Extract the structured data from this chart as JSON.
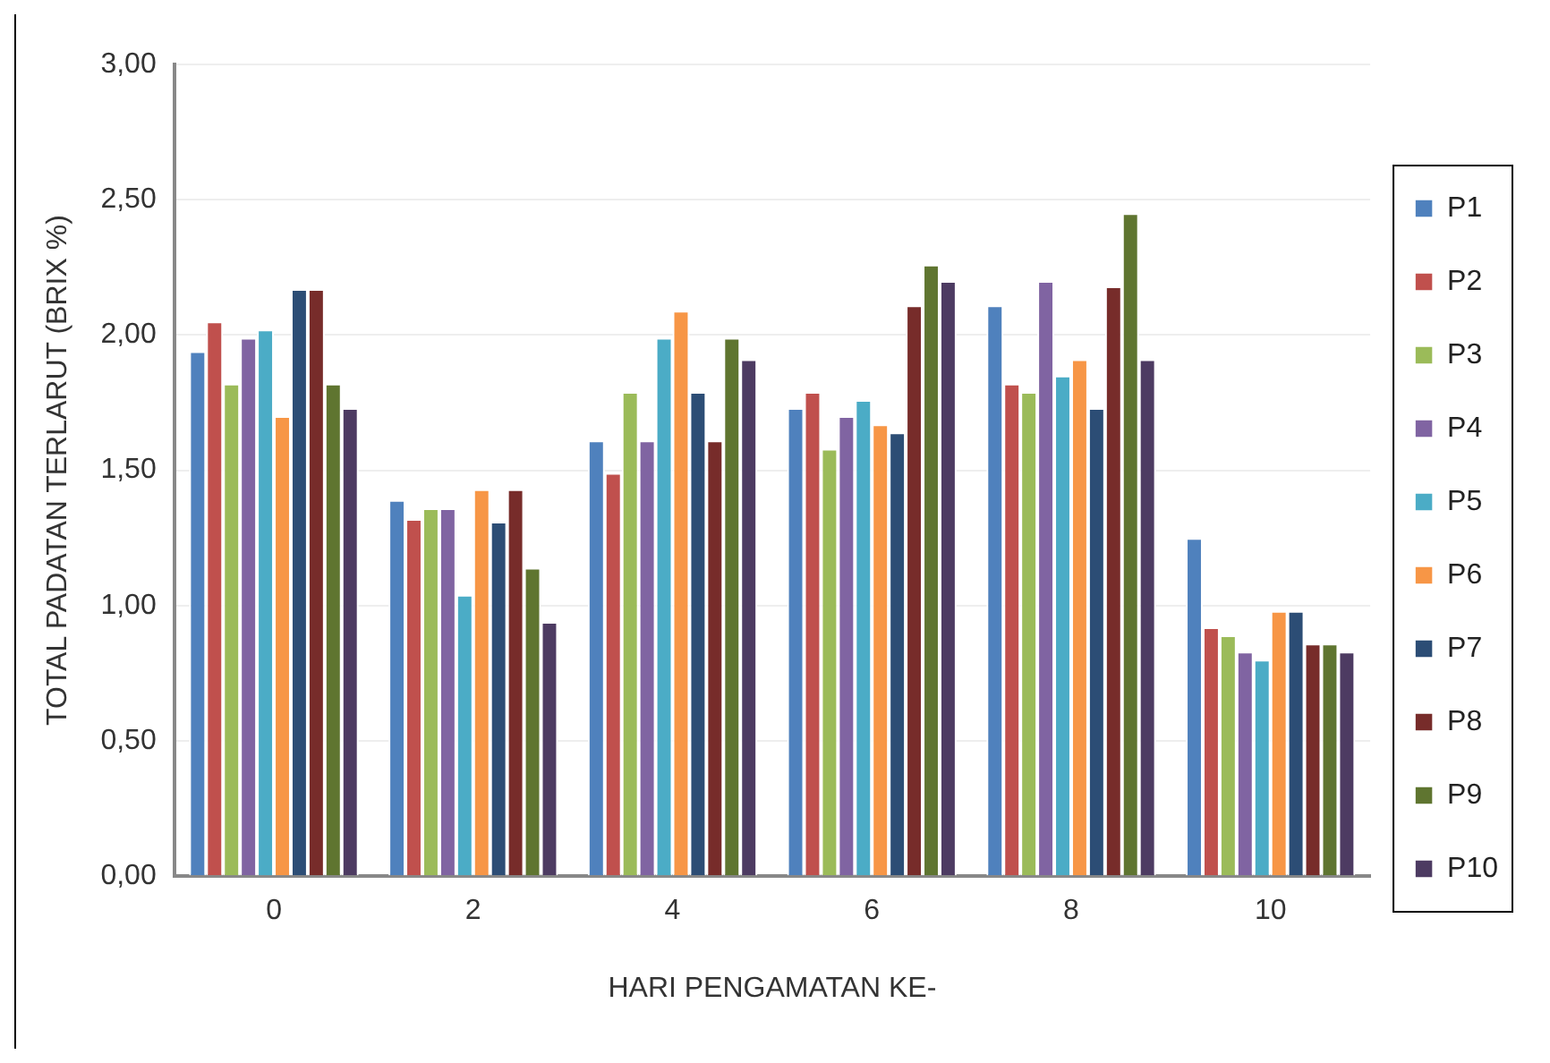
{
  "chart_data": {
    "type": "bar",
    "xlabel": "HARI PENGAMATAN KE-",
    "ylabel": "TOTAL PADATAN TERLARUT (BRIX %)",
    "categories": [
      "0",
      "2",
      "4",
      "6",
      "8",
      "10"
    ],
    "series": [
      {
        "name": "P1",
        "color": "#4f81bd",
        "values": [
          1.94,
          1.39,
          1.61,
          1.73,
          2.11,
          1.25
        ]
      },
      {
        "name": "P2",
        "color": "#c0504d",
        "values": [
          2.05,
          1.32,
          1.49,
          1.79,
          1.82,
          0.92
        ]
      },
      {
        "name": "P3",
        "color": "#9bbb59",
        "values": [
          1.82,
          1.36,
          1.79,
          1.58,
          1.79,
          0.89
        ]
      },
      {
        "name": "P4",
        "color": "#8064a2",
        "values": [
          1.99,
          1.36,
          1.61,
          1.7,
          2.2,
          0.83
        ]
      },
      {
        "name": "P5",
        "color": "#4bacc6",
        "values": [
          2.02,
          1.04,
          1.99,
          1.76,
          1.85,
          0.8
        ]
      },
      {
        "name": "P6",
        "color": "#f79646",
        "values": [
          1.7,
          1.43,
          2.09,
          1.67,
          1.91,
          0.98
        ]
      },
      {
        "name": "P7",
        "color": "#2c4d75",
        "values": [
          2.17,
          1.31,
          1.79,
          1.64,
          1.73,
          0.98
        ]
      },
      {
        "name": "P8",
        "color": "#772c2a",
        "values": [
          2.17,
          1.43,
          1.61,
          2.11,
          2.18,
          0.86
        ]
      },
      {
        "name": "P9",
        "color": "#5f7530",
        "values": [
          1.82,
          1.14,
          1.99,
          2.26,
          2.45,
          0.86
        ]
      },
      {
        "name": "P10",
        "color": "#4d3b62",
        "values": [
          1.73,
          0.94,
          1.91,
          2.2,
          1.91,
          0.83
        ]
      }
    ],
    "ylim": [
      0,
      3
    ],
    "yticks": [
      {
        "value": 0,
        "label": "0,00"
      },
      {
        "value": 0.5,
        "label": "0,50"
      },
      {
        "value": 1,
        "label": "1,00"
      },
      {
        "value": 1.5,
        "label": "1,50"
      },
      {
        "value": 2,
        "label": "2,00"
      },
      {
        "value": 2.5,
        "label": "2,50"
      },
      {
        "value": 3,
        "label": "3,00"
      }
    ],
    "grid": "y",
    "legend": "right"
  }
}
